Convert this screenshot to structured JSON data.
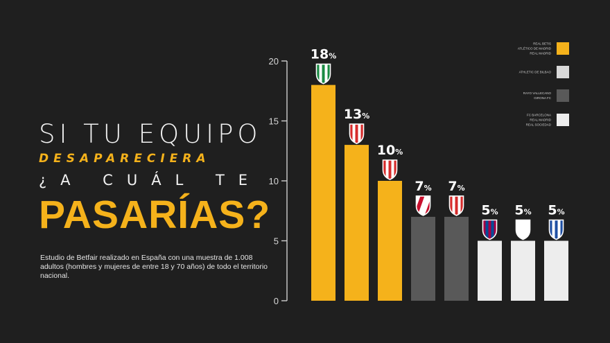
{
  "headline": {
    "line1": "SI TU EQUIPO",
    "line2": "DESAPARECIERA",
    "line3": "¿A CUÁL TE",
    "line4": "PASARÍAS?"
  },
  "footnote": "Estudio de Betfair realizado en España con una muestra de 1.008 adultos (hombres y mujeres de entre 18 y 70 años) de todo el territorio nacional.",
  "colors": {
    "background": "#1f1f1f",
    "yellow": "#f5b21b",
    "light_gray": "#d9d9d9",
    "dark_gray": "#595959",
    "white": "#ededed"
  },
  "chart_data": {
    "type": "bar",
    "ylim": [
      0,
      20
    ],
    "yticks": [
      0,
      5,
      10,
      15,
      20
    ],
    "categories": [
      "",
      "",
      "",
      "",
      "",
      "",
      "",
      ""
    ],
    "values": [
      18,
      13,
      10,
      7,
      7,
      5,
      5,
      5
    ],
    "labels": [
      "18%",
      "13%",
      "10%",
      "7%",
      "7%",
      "5%",
      "5%",
      "5%"
    ],
    "bar_colors": [
      "#f5b21b",
      "#f5b21b",
      "#f5b21b",
      "#595959",
      "#595959",
      "#ededed",
      "#ededed",
      "#ededed"
    ],
    "crest_icons": [
      "green-white-striped-crest-icon",
      "red-white-striped-crest-icon",
      "red-white-striped-crest-icon",
      "red-white-diagonal-crest-icon",
      "red-white-striped-crest-icon",
      "blue-claret-crest-icon",
      "white-crest-icon",
      "blue-white-striped-crest-icon"
    ],
    "legend_placement": "top-right",
    "legend": [
      {
        "lines": [
          "REAL BETIS",
          "ATLÉTICO DE MADRID",
          "REAL MADRID"
        ],
        "color": "#f5b21b"
      },
      {
        "lines": [
          "ATHLETIC DE BILBAO"
        ],
        "color": "#d9d9d9"
      },
      {
        "lines": [
          "RAYO VALLECANO",
          "GIRONA FC"
        ],
        "color": "#595959"
      },
      {
        "lines": [
          "FC BARCELONA",
          "REAL MADRID",
          "REAL SOCIEDAD"
        ],
        "color": "#ededed"
      }
    ],
    "grid": false
  }
}
